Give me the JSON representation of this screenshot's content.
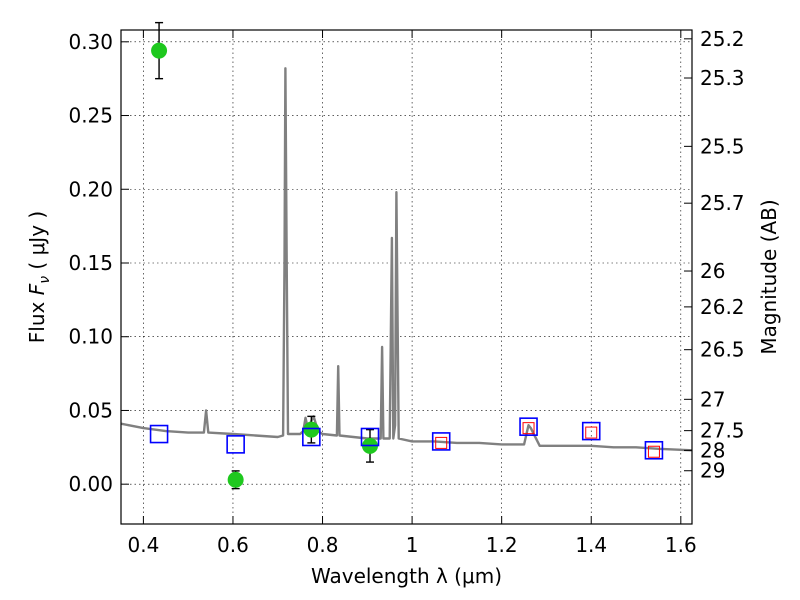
{
  "chart_data": {
    "type": "scatter",
    "xlabel": "Wavelength  λ (μm)",
    "ylabel": "Flux  F_ν  ( μJy )",
    "ylabel_parts": [
      "Flux  ",
      "F",
      "ν",
      "  ( μJy )"
    ],
    "y2label": "Magnitude (AB)",
    "xlim": [
      0.35,
      1.625
    ],
    "ylim": [
      -0.027,
      0.308
    ],
    "grid": true,
    "x_ticks": [
      {
        "value": 0.4,
        "label": "0.4"
      },
      {
        "value": 0.6,
        "label": "0.6"
      },
      {
        "value": 0.8,
        "label": "0.8"
      },
      {
        "value": 1.0,
        "label": "1"
      },
      {
        "value": 1.2,
        "label": "1.2"
      },
      {
        "value": 1.4,
        "label": "1.4"
      },
      {
        "value": 1.6,
        "label": "1.6"
      }
    ],
    "y_ticks": [
      {
        "value": 0.0,
        "label": "0.00"
      },
      {
        "value": 0.05,
        "label": "0.05"
      },
      {
        "value": 0.1,
        "label": "0.10"
      },
      {
        "value": 0.15,
        "label": "0.15"
      },
      {
        "value": 0.2,
        "label": "0.20"
      },
      {
        "value": 0.25,
        "label": "0.25"
      },
      {
        "value": 0.3,
        "label": "0.30"
      }
    ],
    "y2_ticks": [
      {
        "mag": 25.2,
        "label": "25.2"
      },
      {
        "mag": 25.3,
        "label": "25.3"
      },
      {
        "mag": 25.5,
        "label": "25.5"
      },
      {
        "mag": 25.7,
        "label": "25.7"
      },
      {
        "mag": 26,
        "label": "26"
      },
      {
        "mag": 26.2,
        "label": "26.2"
      },
      {
        "mag": 26.5,
        "label": "26.5"
      },
      {
        "mag": 27,
        "label": "27"
      },
      {
        "mag": 27.5,
        "label": "27.5"
      },
      {
        "mag": 28,
        "label": "28"
      },
      {
        "mag": 29,
        "label": "29"
      }
    ],
    "series": [
      {
        "kind": "model_spectrum",
        "color": "#808080",
        "points": [
          [
            0.35,
            0.041
          ],
          [
            0.4,
            0.038
          ],
          [
            0.45,
            0.036
          ],
          [
            0.5,
            0.035
          ],
          [
            0.535,
            0.035
          ],
          [
            0.54,
            0.05
          ],
          [
            0.545,
            0.035
          ],
          [
            0.6,
            0.034
          ],
          [
            0.65,
            0.033
          ],
          [
            0.7,
            0.032
          ],
          [
            0.712,
            0.033
          ],
          [
            0.715,
            0.15
          ],
          [
            0.717,
            0.282
          ],
          [
            0.72,
            0.15
          ],
          [
            0.723,
            0.034
          ],
          [
            0.75,
            0.034
          ],
          [
            0.757,
            0.036
          ],
          [
            0.762,
            0.045
          ],
          [
            0.767,
            0.038
          ],
          [
            0.78,
            0.046
          ],
          [
            0.79,
            0.036
          ],
          [
            0.8,
            0.034
          ],
          [
            0.832,
            0.033
          ],
          [
            0.835,
            0.08
          ],
          [
            0.838,
            0.033
          ],
          [
            0.9,
            0.031
          ],
          [
            0.93,
            0.031
          ],
          [
            0.933,
            0.093
          ],
          [
            0.936,
            0.031
          ],
          [
            0.95,
            0.031
          ],
          [
            0.955,
            0.167
          ],
          [
            0.958,
            0.031
          ],
          [
            0.962,
            0.04
          ],
          [
            0.965,
            0.198
          ],
          [
            0.97,
            0.031
          ],
          [
            1.0,
            0.029
          ],
          [
            1.05,
            0.029
          ],
          [
            1.1,
            0.028
          ],
          [
            1.15,
            0.028
          ],
          [
            1.2,
            0.027
          ],
          [
            1.25,
            0.027
          ],
          [
            1.26,
            0.04
          ],
          [
            1.265,
            0.038
          ],
          [
            1.285,
            0.026
          ],
          [
            1.35,
            0.026
          ],
          [
            1.4,
            0.026
          ],
          [
            1.45,
            0.025
          ],
          [
            1.5,
            0.025
          ],
          [
            1.55,
            0.024
          ],
          [
            1.625,
            0.023
          ]
        ]
      },
      {
        "kind": "observed_photometry",
        "color": "#1ec81e",
        "points": [
          {
            "x": 0.435,
            "y": 0.294,
            "err": 0.019
          },
          {
            "x": 0.606,
            "y": 0.003,
            "err": 0.006
          },
          {
            "x": 0.775,
            "y": 0.037,
            "err": 0.009
          },
          {
            "x": 0.906,
            "y": 0.026,
            "err": 0.011
          }
        ]
      },
      {
        "kind": "model_photometry",
        "color": "#0000ff",
        "points": [
          {
            "x": 0.435,
            "y": 0.034
          },
          {
            "x": 0.606,
            "y": 0.027
          },
          {
            "x": 0.775,
            "y": 0.032
          },
          {
            "x": 0.906,
            "y": 0.032
          },
          {
            "x": 1.065,
            "y": 0.029
          },
          {
            "x": 1.26,
            "y": 0.039
          },
          {
            "x": 1.4,
            "y": 0.036
          },
          {
            "x": 1.54,
            "y": 0.023
          }
        ]
      },
      {
        "kind": "model_photometry_inner",
        "color": "#ff0000",
        "points": [
          {
            "x": 1.065,
            "y": 0.028
          },
          {
            "x": 1.26,
            "y": 0.038
          },
          {
            "x": 1.4,
            "y": 0.035
          },
          {
            "x": 1.54,
            "y": 0.022
          }
        ]
      }
    ]
  }
}
